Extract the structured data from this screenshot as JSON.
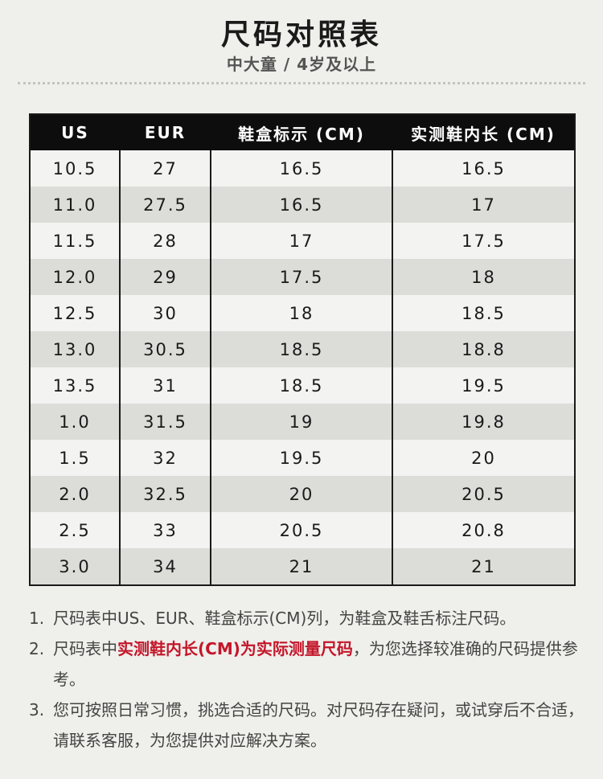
{
  "header": {
    "title": "尺码对照表",
    "subtitle": "中大童 / 4岁及以上"
  },
  "table": {
    "columns": [
      "US",
      "EUR",
      "鞋盒标示 (CM)",
      "实测鞋内长 (CM)"
    ],
    "rows": [
      [
        "10.5",
        "27",
        "16.5",
        "16.5"
      ],
      [
        "11.0",
        "27.5",
        "16.5",
        "17"
      ],
      [
        "11.5",
        "28",
        "17",
        "17.5"
      ],
      [
        "12.0",
        "29",
        "17.5",
        "18"
      ],
      [
        "12.5",
        "30",
        "18",
        "18.5"
      ],
      [
        "13.0",
        "30.5",
        "18.5",
        "18.8"
      ],
      [
        "13.5",
        "31",
        "18.5",
        "19.5"
      ],
      [
        "1.0",
        "31.5",
        "19",
        "19.8"
      ],
      [
        "1.5",
        "32",
        "19.5",
        "20"
      ],
      [
        "2.0",
        "32.5",
        "20",
        "20.5"
      ],
      [
        "2.5",
        "33",
        "20.5",
        "20.8"
      ],
      [
        "3.0",
        "34",
        "21",
        "21"
      ]
    ]
  },
  "notes": [
    {
      "num": "1.",
      "text": "尺码表中US、EUR、鞋盒标示(CM)列，为鞋盒及鞋舌标注尺码。"
    },
    {
      "num": "2.",
      "prefix": "尺码表中",
      "highlight": "实测鞋内长(CM)为实际测量尺码",
      "suffix": "，为您选择较准确的尺码提供参考。"
    },
    {
      "num": "3.",
      "text": "您可按照日常习惯，挑选合适的尺码。对尺码存在疑问，或试穿后不合适，请联系客服，为您提供对应解决方案。"
    }
  ],
  "colors": {
    "background": "#efefeb",
    "header_bg": "#0d0d0d",
    "row_light": "#f3f3f1",
    "row_dark": "#dcdcd9",
    "highlight": "#c4162a"
  }
}
